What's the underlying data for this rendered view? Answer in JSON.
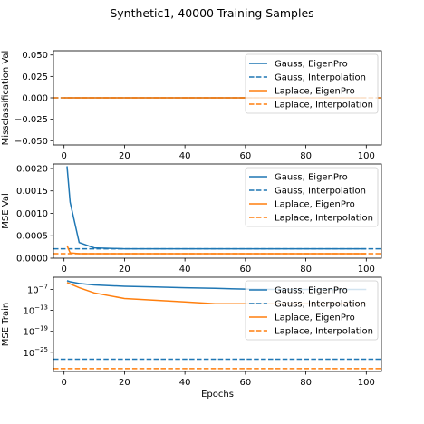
{
  "title": "Synthetic1, 40000 Training Samples",
  "colors": {
    "gauss": "#1f77b4",
    "laplace": "#ff7f0e",
    "legend_border": "#cccccc"
  },
  "chart_data": [
    {
      "type": "line",
      "ylabel": "Missclassification Val",
      "xlabel": "",
      "xlim": [
        -3.5,
        105
      ],
      "ylim": [
        -0.055,
        0.055
      ],
      "xticks": [
        0,
        20,
        40,
        60,
        80,
        100
      ],
      "xtick_labels": [
        "0",
        "20",
        "40",
        "60",
        "80",
        "100"
      ],
      "yticks": [
        0.05,
        0.025,
        0.0,
        -0.025,
        -0.05
      ],
      "ytick_labels": [
        "0.050",
        "0.025",
        "0.000",
        "−0.025",
        "−0.050"
      ],
      "legend": "top-right",
      "series": [
        {
          "name": "Gauss, EigenPro",
          "color": "#1f77b4",
          "style": "solid",
          "x": [
            0,
            1,
            5,
            10,
            20,
            30,
            40,
            50,
            60,
            70,
            80,
            90,
            100
          ],
          "y": [
            0,
            0,
            0,
            0,
            0,
            0,
            0,
            0,
            0,
            0,
            0,
            0,
            0
          ]
        },
        {
          "name": "Gauss, Interpolation",
          "color": "#1f77b4",
          "style": "dashed",
          "hline": 0.0
        },
        {
          "name": "Laplace, EigenPro",
          "color": "#ff7f0e",
          "style": "solid",
          "x": [
            0,
            1,
            5,
            10,
            20,
            30,
            40,
            50,
            60,
            70,
            80,
            90,
            100
          ],
          "y": [
            0,
            0,
            0,
            0,
            0,
            0,
            0,
            0,
            0,
            0,
            0,
            0,
            0
          ]
        },
        {
          "name": "Laplace, Interpolation",
          "color": "#ff7f0e",
          "style": "dashed",
          "hline": 0.0
        }
      ]
    },
    {
      "type": "line",
      "ylabel": "MSE Val",
      "xlabel": "",
      "xlim": [
        -3.5,
        105
      ],
      "ylim": [
        0,
        0.0021
      ],
      "xticks": [
        0,
        20,
        40,
        60,
        80,
        100
      ],
      "xtick_labels": [
        "0",
        "20",
        "40",
        "60",
        "80",
        "100"
      ],
      "yticks": [
        0.002,
        0.0015,
        0.001,
        0.0005,
        0.0
      ],
      "ytick_labels": [
        "0.0020",
        "0.0015",
        "0.0010",
        "0.0005",
        "0.0000"
      ],
      "legend": "top-right",
      "series": [
        {
          "name": "Gauss, EigenPro",
          "color": "#1f77b4",
          "style": "solid",
          "x": [
            1,
            2,
            5,
            10,
            15,
            20,
            30,
            40,
            50,
            60,
            70,
            80,
            90,
            100
          ],
          "y": [
            0.00205,
            0.00125,
            0.00035,
            0.00023,
            0.00022,
            0.00021,
            0.00021,
            0.00021,
            0.00021,
            0.00021,
            0.00021,
            0.00021,
            0.00021,
            0.00021
          ]
        },
        {
          "name": "Gauss, Interpolation",
          "color": "#1f77b4",
          "style": "dashed",
          "hline": 0.00021
        },
        {
          "name": "Laplace, EigenPro",
          "color": "#ff7f0e",
          "style": "solid",
          "x": [
            1,
            2,
            5,
            10,
            20,
            30,
            40,
            50,
            60,
            70,
            80,
            90,
            100
          ],
          "y": [
            0.00028,
            0.00012,
            0.0001,
            0.0001,
            0.0001,
            0.0001,
            0.0001,
            0.0001,
            0.0001,
            0.0001,
            0.0001,
            0.0001,
            0.0001
          ]
        },
        {
          "name": "Laplace, Interpolation",
          "color": "#ff7f0e",
          "style": "dashed",
          "hline": 0.0001
        }
      ]
    },
    {
      "type": "line",
      "scale": "log",
      "ylabel": "MSE Train",
      "xlabel": "Epochs",
      "xlim": [
        -3.5,
        105
      ],
      "ylim_exp": [
        -30.5,
        -3.5
      ],
      "xticks": [
        0,
        20,
        40,
        60,
        80,
        100
      ],
      "xtick_labels": [
        "0",
        "20",
        "40",
        "60",
        "80",
        "100"
      ],
      "ytick_exps": [
        -7,
        -13,
        -19,
        -25
      ],
      "ytick_bases": [
        "10",
        "10",
        "10",
        "10"
      ],
      "ytick_supers": [
        "−7",
        "−13",
        "−19",
        "−25"
      ],
      "legend": "top-right",
      "series": [
        {
          "name": "Gauss, EigenPro",
          "color": "#1f77b4",
          "style": "solid",
          "x_exp": [
            1,
            2,
            5,
            10,
            20,
            30,
            40,
            50,
            60,
            70,
            80,
            90,
            100
          ],
          "y_exp": [
            -4.5,
            -4.8,
            -5.3,
            -5.7,
            -6.1,
            -6.3,
            -6.5,
            -6.7,
            -6.9,
            -7.0,
            -7.0,
            -7.0,
            -7.0
          ]
        },
        {
          "name": "Gauss, Interpolation",
          "color": "#1f77b4",
          "style": "dashed",
          "hline_exp": -27.0
        },
        {
          "name": "Laplace, EigenPro",
          "color": "#ff7f0e",
          "style": "solid",
          "x_exp": [
            1,
            2,
            5,
            10,
            20,
            30,
            40,
            50,
            60,
            70,
            80,
            90,
            100
          ],
          "y_exp": [
            -5.0,
            -5.4,
            -6.5,
            -8.0,
            -9.6,
            -10.1,
            -10.6,
            -11.1,
            -11.1,
            -11.1,
            -11.1,
            -11.1,
            -11.1
          ]
        },
        {
          "name": "Laplace, Interpolation",
          "color": "#ff7f0e",
          "style": "dashed",
          "hline_exp": -29.7
        }
      ]
    }
  ]
}
